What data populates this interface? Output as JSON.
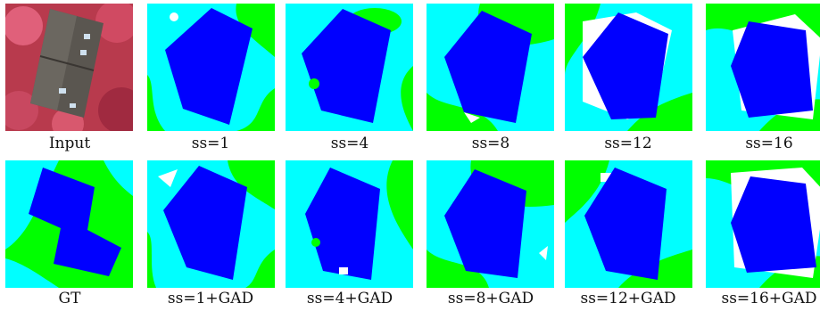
{
  "figure": {
    "rows": [
      {
        "row_id": "top",
        "panels": [
          {
            "id": "input",
            "caption": "Input",
            "kind": "photo"
          },
          {
            "id": "ss1",
            "caption": "ss=1",
            "kind": "segmentation",
            "variant": "ss1"
          },
          {
            "id": "ss4",
            "caption": "ss=4",
            "kind": "segmentation",
            "variant": "ss4"
          },
          {
            "id": "ss8",
            "caption": "ss=8",
            "kind": "segmentation",
            "variant": "ss8"
          },
          {
            "id": "ss12",
            "caption": "ss=12",
            "kind": "segmentation",
            "variant": "ss12"
          },
          {
            "id": "ss16",
            "caption": "ss=16",
            "kind": "segmentation",
            "variant": "ss16"
          }
        ]
      },
      {
        "row_id": "bottom",
        "panels": [
          {
            "id": "gt",
            "caption": "GT",
            "kind": "ground-truth"
          },
          {
            "id": "ss1gad",
            "caption": "ss=1+GAD",
            "kind": "segmentation",
            "variant": "ss1gad"
          },
          {
            "id": "ss4gad",
            "caption": "ss=4+GAD",
            "kind": "segmentation",
            "variant": "ss4gad"
          },
          {
            "id": "ss8gad",
            "caption": "ss=8+GAD",
            "kind": "segmentation",
            "variant": "ss8gad"
          },
          {
            "id": "ss12gad",
            "caption": "ss=12+GAD",
            "kind": "segmentation",
            "variant": "ss12gad"
          },
          {
            "id": "ss16gad",
            "caption": "ss=16+GAD",
            "kind": "segmentation",
            "variant": "ss16gad"
          }
        ]
      }
    ],
    "colors": {
      "building": "#0000ff",
      "low_vegetation": "#00ffff",
      "tree": "#00ff00",
      "clutter": "#ffffff",
      "photo_roof": "#5a5650",
      "photo_tree": "#c8324a"
    }
  }
}
